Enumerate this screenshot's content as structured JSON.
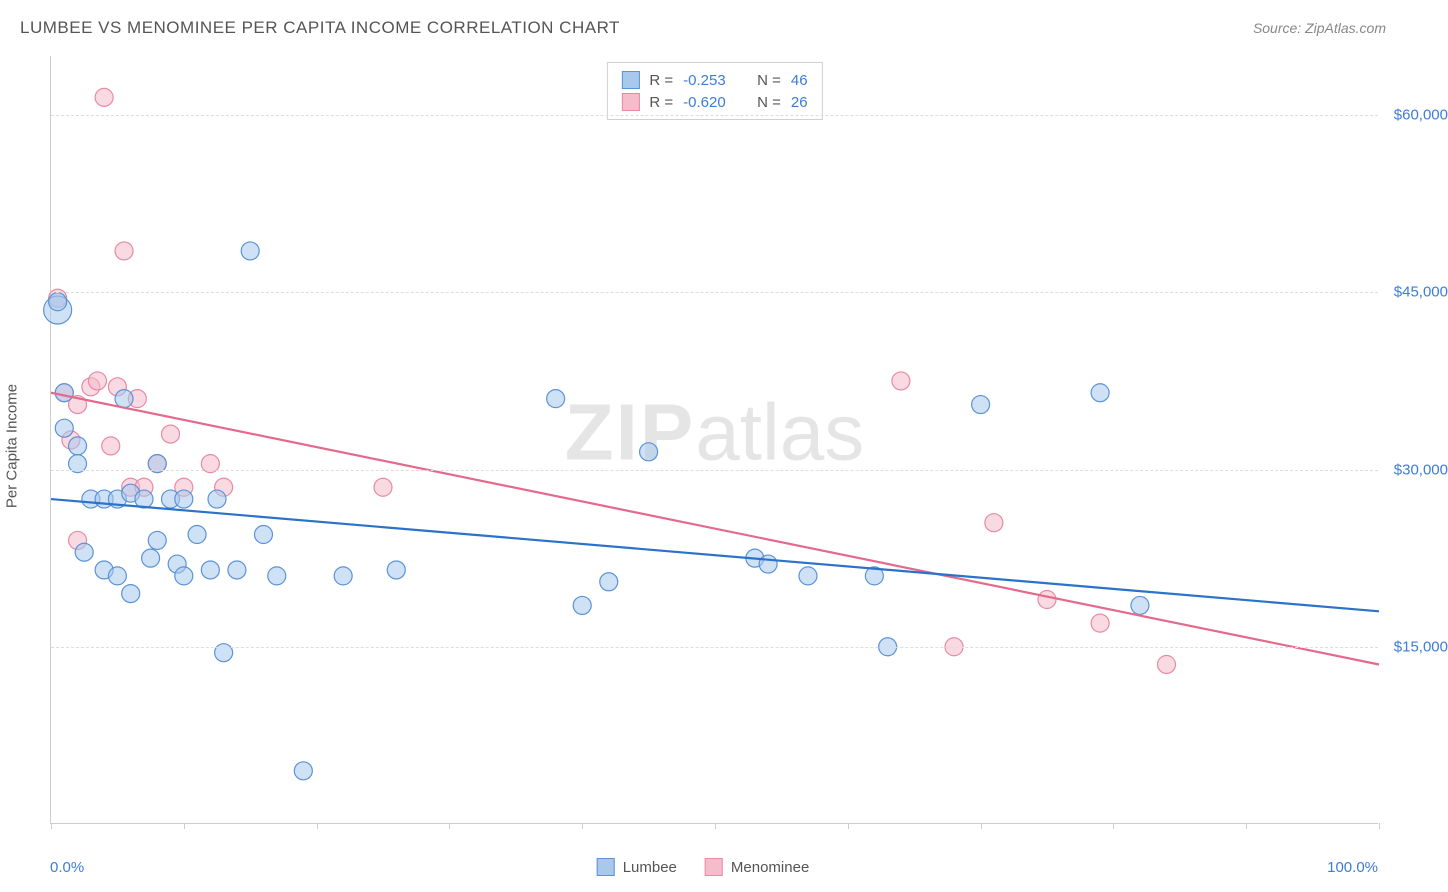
{
  "title": "LUMBEE VS MENOMINEE PER CAPITA INCOME CORRELATION CHART",
  "source": "Source: ZipAtlas.com",
  "watermark_a": "ZIP",
  "watermark_b": "atlas",
  "y_axis_label": "Per Capita Income",
  "x_axis": {
    "min_label": "0.0%",
    "max_label": "100.0%",
    "min": 0,
    "max": 100,
    "tick_positions_pct": [
      0,
      10,
      20,
      30,
      40,
      50,
      60,
      70,
      80,
      90,
      100
    ]
  },
  "y_axis": {
    "min": 0,
    "max": 65000,
    "grid_values": [
      15000,
      30000,
      45000,
      60000
    ],
    "grid_labels": [
      "$15,000",
      "$30,000",
      "$45,000",
      "$60,000"
    ]
  },
  "colors": {
    "lumbee_fill": "#a8c8ec",
    "lumbee_stroke": "#5b93d6",
    "lumbee_line": "#2b72c9",
    "menominee_fill": "#f5bccb",
    "menominee_stroke": "#e78aa5",
    "menominee_line": "#e36a8d",
    "grid": "#dddddd",
    "axis": "#cccccc",
    "tick_text": "#3b7dd8",
    "title_text": "#555555",
    "source_text": "#888888",
    "background": "#ffffff"
  },
  "marker_radius": 9,
  "marker_opacity": 0.55,
  "line_width": 2.2,
  "legend_top": [
    {
      "series": "lumbee",
      "R_label": "R =",
      "R": "-0.253",
      "N_label": "N =",
      "N": "46"
    },
    {
      "series": "menominee",
      "R_label": "R =",
      "R": "-0.620",
      "N_label": "N =",
      "N": "26"
    }
  ],
  "legend_bottom": [
    {
      "series": "lumbee",
      "label": "Lumbee"
    },
    {
      "series": "menominee",
      "label": "Menominee"
    }
  ],
  "trend_lines": {
    "lumbee": {
      "x1": 0,
      "y1": 27500,
      "x2": 100,
      "y2": 18000
    },
    "menominee": {
      "x1": 0,
      "y1": 36500,
      "x2": 100,
      "y2": 13500
    }
  },
  "points": {
    "lumbee": [
      {
        "x": 0.5,
        "y": 43500,
        "r": 14
      },
      {
        "x": 0.5,
        "y": 44200
      },
      {
        "x": 1,
        "y": 33500
      },
      {
        "x": 1,
        "y": 36500
      },
      {
        "x": 2,
        "y": 32000
      },
      {
        "x": 2,
        "y": 30500
      },
      {
        "x": 2.5,
        "y": 23000
      },
      {
        "x": 3,
        "y": 27500
      },
      {
        "x": 4,
        "y": 27500
      },
      {
        "x": 4,
        "y": 21500
      },
      {
        "x": 5,
        "y": 27500
      },
      {
        "x": 5,
        "y": 21000
      },
      {
        "x": 5.5,
        "y": 36000
      },
      {
        "x": 6,
        "y": 28000
      },
      {
        "x": 6,
        "y": 19500
      },
      {
        "x": 7,
        "y": 27500
      },
      {
        "x": 7.5,
        "y": 22500
      },
      {
        "x": 8,
        "y": 30500
      },
      {
        "x": 8,
        "y": 24000
      },
      {
        "x": 9,
        "y": 27500
      },
      {
        "x": 9.5,
        "y": 22000
      },
      {
        "x": 10,
        "y": 27500
      },
      {
        "x": 10,
        "y": 21000
      },
      {
        "x": 11,
        "y": 24500
      },
      {
        "x": 12,
        "y": 21500
      },
      {
        "x": 12.5,
        "y": 27500
      },
      {
        "x": 13,
        "y": 14500
      },
      {
        "x": 14,
        "y": 21500
      },
      {
        "x": 15,
        "y": 48500
      },
      {
        "x": 16,
        "y": 24500
      },
      {
        "x": 17,
        "y": 21000
      },
      {
        "x": 19,
        "y": 4500
      },
      {
        "x": 22,
        "y": 21000
      },
      {
        "x": 26,
        "y": 21500
      },
      {
        "x": 38,
        "y": 36000
      },
      {
        "x": 40,
        "y": 18500
      },
      {
        "x": 42,
        "y": 20500
      },
      {
        "x": 45,
        "y": 31500
      },
      {
        "x": 53,
        "y": 22500
      },
      {
        "x": 54,
        "y": 22000
      },
      {
        "x": 57,
        "y": 21000
      },
      {
        "x": 62,
        "y": 21000
      },
      {
        "x": 63,
        "y": 15000
      },
      {
        "x": 70,
        "y": 35500
      },
      {
        "x": 79,
        "y": 36500
      },
      {
        "x": 82,
        "y": 18500
      }
    ],
    "menominee": [
      {
        "x": 0.5,
        "y": 44500
      },
      {
        "x": 1,
        "y": 36500
      },
      {
        "x": 1.5,
        "y": 32500
      },
      {
        "x": 2,
        "y": 35500
      },
      {
        "x": 2,
        "y": 24000
      },
      {
        "x": 3,
        "y": 37000
      },
      {
        "x": 3.5,
        "y": 37500
      },
      {
        "x": 4,
        "y": 61500
      },
      {
        "x": 4.5,
        "y": 32000
      },
      {
        "x": 5,
        "y": 37000
      },
      {
        "x": 5.5,
        "y": 48500
      },
      {
        "x": 6,
        "y": 28500
      },
      {
        "x": 6.5,
        "y": 36000
      },
      {
        "x": 7,
        "y": 28500
      },
      {
        "x": 8,
        "y": 30500
      },
      {
        "x": 9,
        "y": 33000
      },
      {
        "x": 10,
        "y": 28500
      },
      {
        "x": 12,
        "y": 30500
      },
      {
        "x": 13,
        "y": 28500
      },
      {
        "x": 25,
        "y": 28500
      },
      {
        "x": 64,
        "y": 37500
      },
      {
        "x": 68,
        "y": 15000
      },
      {
        "x": 71,
        "y": 25500
      },
      {
        "x": 75,
        "y": 19000
      },
      {
        "x": 79,
        "y": 17000
      },
      {
        "x": 84,
        "y": 13500
      }
    ]
  }
}
